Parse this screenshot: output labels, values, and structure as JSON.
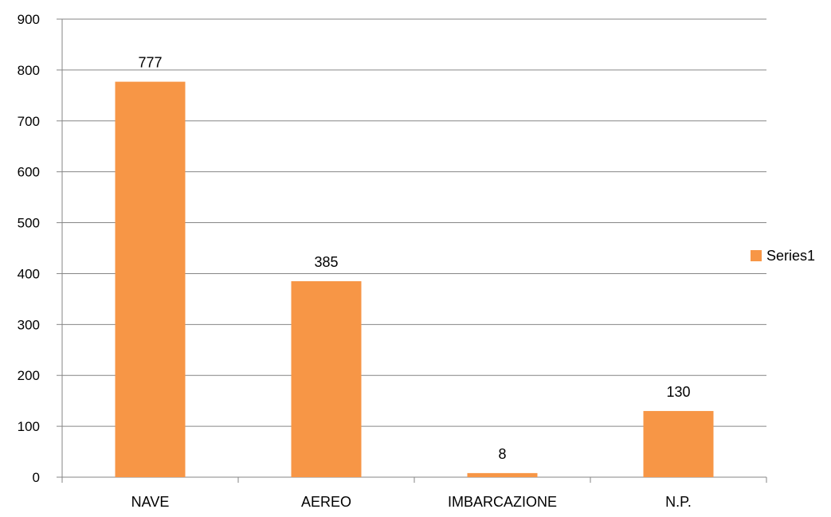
{
  "chart_data": {
    "type": "bar",
    "title": "",
    "xlabel": "",
    "ylabel": "",
    "categories": [
      "NAVE",
      "AEREO",
      "IMBARCAZIONE",
      "N.P."
    ],
    "series": [
      {
        "name": "Series1",
        "values": [
          777,
          385,
          8,
          130
        ],
        "color": "#F79646"
      }
    ],
    "data_labels": [
      "777",
      "385",
      "8",
      "130"
    ],
    "ylim": [
      0,
      900
    ],
    "yticks": [
      0,
      100,
      200,
      300,
      400,
      500,
      600,
      700,
      800,
      900
    ],
    "grid": "horizontal",
    "legend_position": "right",
    "colors": {
      "grid": "#868686",
      "axis": "#868686",
      "text": "#000000",
      "bar": "#F79646"
    }
  }
}
